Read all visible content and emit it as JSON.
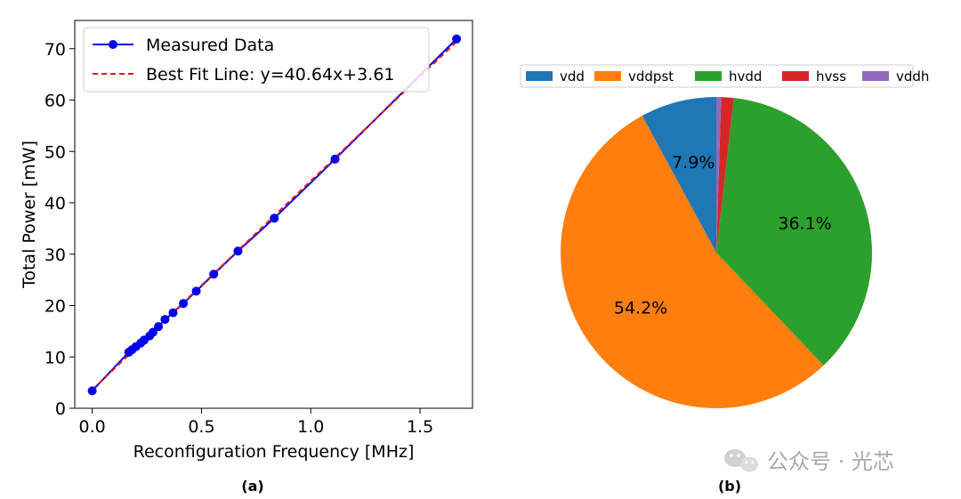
{
  "chart_data": [
    {
      "type": "line",
      "panel_label": "(a)",
      "xlabel": "Reconfiguration Frequency [MHz]",
      "ylabel": "Total Power [mW]",
      "xlim": [
        -0.08,
        1.74
      ],
      "ylim": [
        0,
        75.5
      ],
      "xticks": [
        0.0,
        0.5,
        1.0,
        1.5
      ],
      "xtick_labels": [
        "0.0",
        "0.5",
        "1.0",
        "1.5"
      ],
      "yticks": [
        0,
        10,
        20,
        30,
        40,
        50,
        60,
        70
      ],
      "ytick_labels": [
        "0",
        "10",
        "20",
        "30",
        "40",
        "50",
        "60",
        "70"
      ],
      "grid": false,
      "legend_position": "top-left",
      "series": [
        {
          "name": "Measured Data",
          "style": "line+markers",
          "color": "#0000ee",
          "x": [
            0.0,
            0.167,
            0.182,
            0.2,
            0.222,
            0.238,
            0.263,
            0.278,
            0.303,
            0.333,
            0.37,
            0.417,
            0.476,
            0.556,
            0.667,
            0.833,
            1.111,
            1.667
          ],
          "y": [
            3.4,
            10.9,
            11.4,
            12.0,
            12.7,
            13.3,
            14.1,
            14.8,
            15.9,
            17.3,
            18.6,
            20.4,
            22.8,
            26.1,
            30.6,
            37.0,
            48.5,
            71.9
          ]
        },
        {
          "name": "Best Fit Line: y=40.64x+3.61",
          "style": "dashed",
          "color": "#ee1111",
          "slope": 40.64,
          "intercept": 3.61,
          "x_range": [
            0.0,
            1.667
          ]
        }
      ]
    },
    {
      "type": "pie",
      "panel_label": "(b)",
      "legend_position": "top",
      "start_angle_deg": 90,
      "direction": "counterclockwise",
      "slices": [
        {
          "label": "vdd",
          "value": 7.9,
          "color": "#1f77b4",
          "pct_label": "7.9%"
        },
        {
          "label": "vddpst",
          "value": 54.2,
          "color": "#ff7f0e",
          "pct_label": "54.2%"
        },
        {
          "label": "hvdd",
          "value": 36.1,
          "color": "#2ca02c",
          "pct_label": "36.1%"
        },
        {
          "label": "hvss",
          "value": 1.3,
          "color": "#d62728",
          "pct_label": ""
        },
        {
          "label": "vddh",
          "value": 0.5,
          "color": "#9467bd",
          "pct_label": ""
        }
      ]
    }
  ],
  "watermark": {
    "icon": "wechat-icon",
    "text": "公众号 · 光芯"
  }
}
